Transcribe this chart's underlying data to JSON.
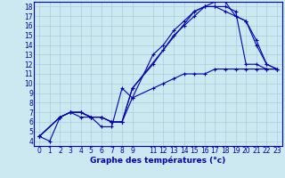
{
  "xlabel": "Graphe des températures (°c)",
  "bg_color": "#cce8f0",
  "grid_color": "#aaccdd",
  "line_color": "#0000bb",
  "spine_color": "#0000bb",
  "xlim": [
    -0.5,
    23.5
  ],
  "ylim": [
    3.5,
    18.5
  ],
  "yticks": [
    4,
    5,
    6,
    7,
    8,
    9,
    10,
    11,
    12,
    13,
    14,
    15,
    16,
    17,
    18
  ],
  "xticks": [
    0,
    1,
    2,
    3,
    4,
    5,
    6,
    7,
    8,
    9,
    11,
    12,
    13,
    14,
    15,
    16,
    17,
    18,
    19,
    20,
    21,
    22,
    23
  ],
  "curves": [
    {
      "x": [
        0,
        1,
        2,
        3,
        4,
        5,
        6,
        7,
        8,
        9,
        11,
        12,
        13,
        14,
        15,
        16,
        17,
        18,
        19,
        20,
        21,
        22,
        23
      ],
      "y": [
        4.5,
        4.0,
        6.5,
        7.0,
        6.5,
        6.5,
        5.5,
        5.5,
        9.5,
        8.5,
        13.0,
        14.0,
        15.5,
        16.5,
        17.5,
        18.0,
        18.0,
        18.0,
        17.5,
        12.0,
        12.0,
        11.5,
        11.5
      ]
    },
    {
      "x": [
        0,
        2,
        3,
        4,
        5,
        6,
        7,
        8,
        9,
        11,
        12,
        13,
        14,
        15,
        16,
        17,
        18,
        19,
        20,
        21,
        22,
        23
      ],
      "y": [
        4.5,
        6.5,
        7.0,
        7.0,
        6.5,
        6.5,
        6.0,
        6.0,
        9.5,
        12.0,
        13.5,
        15.0,
        16.0,
        17.0,
        18.0,
        18.5,
        18.5,
        17.0,
        16.5,
        14.5,
        12.0,
        11.5
      ]
    },
    {
      "x": [
        0,
        2,
        3,
        4,
        5,
        6,
        7,
        8,
        9,
        11,
        12,
        13,
        14,
        15,
        16,
        17,
        18,
        19,
        20,
        21,
        22,
        23
      ],
      "y": [
        4.5,
        6.5,
        7.0,
        7.0,
        6.5,
        6.5,
        6.0,
        6.0,
        8.5,
        9.5,
        10.0,
        10.5,
        11.0,
        11.0,
        11.0,
        11.5,
        11.5,
        11.5,
        11.5,
        11.5,
        11.5,
        11.5
      ]
    },
    {
      "x": [
        0,
        2,
        3,
        4,
        5,
        6,
        7,
        8,
        9,
        15,
        16,
        17,
        18,
        19,
        20,
        21,
        22,
        23
      ],
      "y": [
        4.5,
        6.5,
        7.0,
        7.0,
        6.5,
        6.5,
        6.0,
        6.0,
        9.5,
        17.5,
        18.0,
        18.0,
        17.5,
        17.0,
        16.5,
        14.0,
        12.0,
        11.5
      ]
    }
  ],
  "tick_fontsize": 5.5,
  "xlabel_fontsize": 6.5,
  "xlabel_fontweight": "bold"
}
